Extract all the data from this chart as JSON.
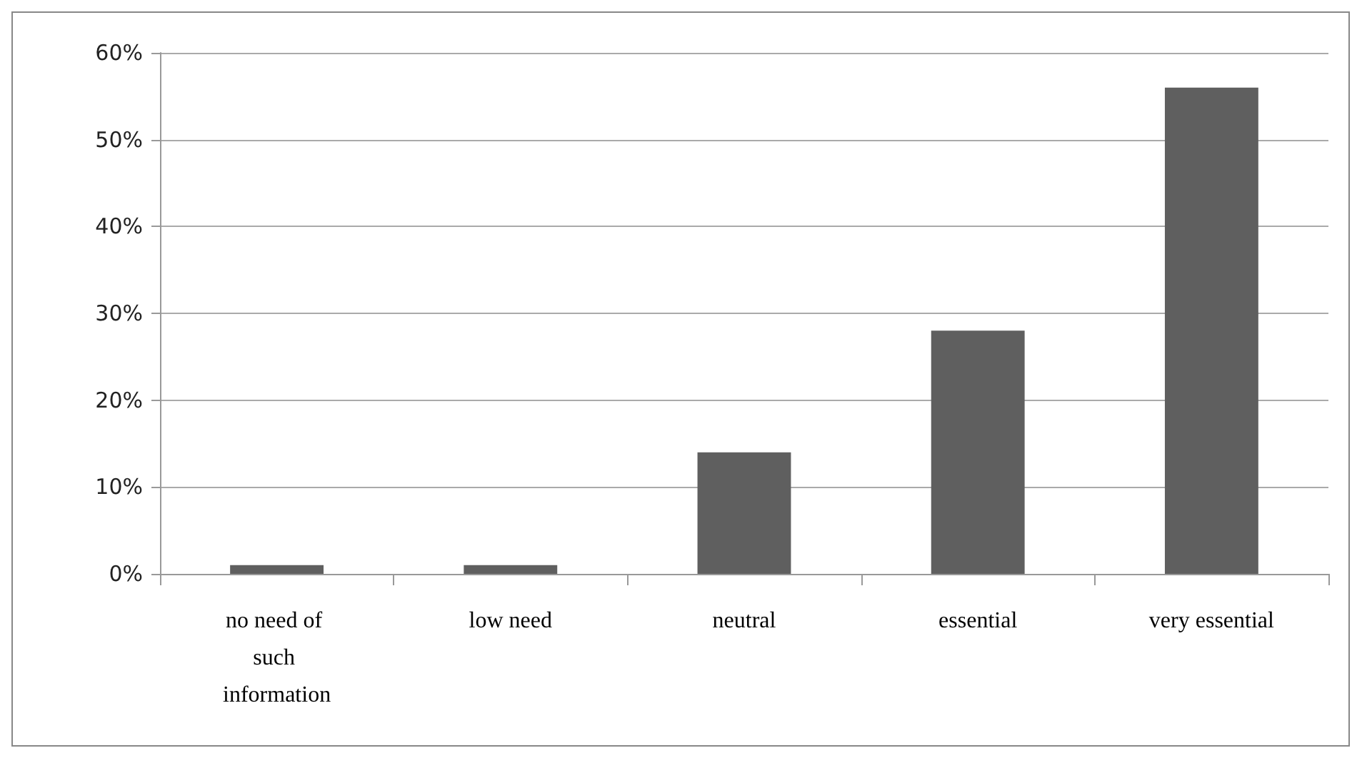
{
  "chart_data": {
    "type": "bar",
    "categories": [
      "no need of such information",
      "low need",
      "neutral",
      "essential",
      "very essential"
    ],
    "values": [
      1,
      1,
      14,
      28,
      56
    ],
    "color": "#5f5f5f",
    "ylim": [
      0,
      60
    ],
    "yticks": [
      {
        "value": 0,
        "label": "0%"
      },
      {
        "value": 10,
        "label": "10%"
      },
      {
        "value": 20,
        "label": "20%"
      },
      {
        "value": 30,
        "label": "30%"
      },
      {
        "value": 40,
        "label": "40%"
      },
      {
        "value": 50,
        "label": "50%"
      },
      {
        "value": 60,
        "label": "60%"
      }
    ],
    "grid": "y"
  }
}
